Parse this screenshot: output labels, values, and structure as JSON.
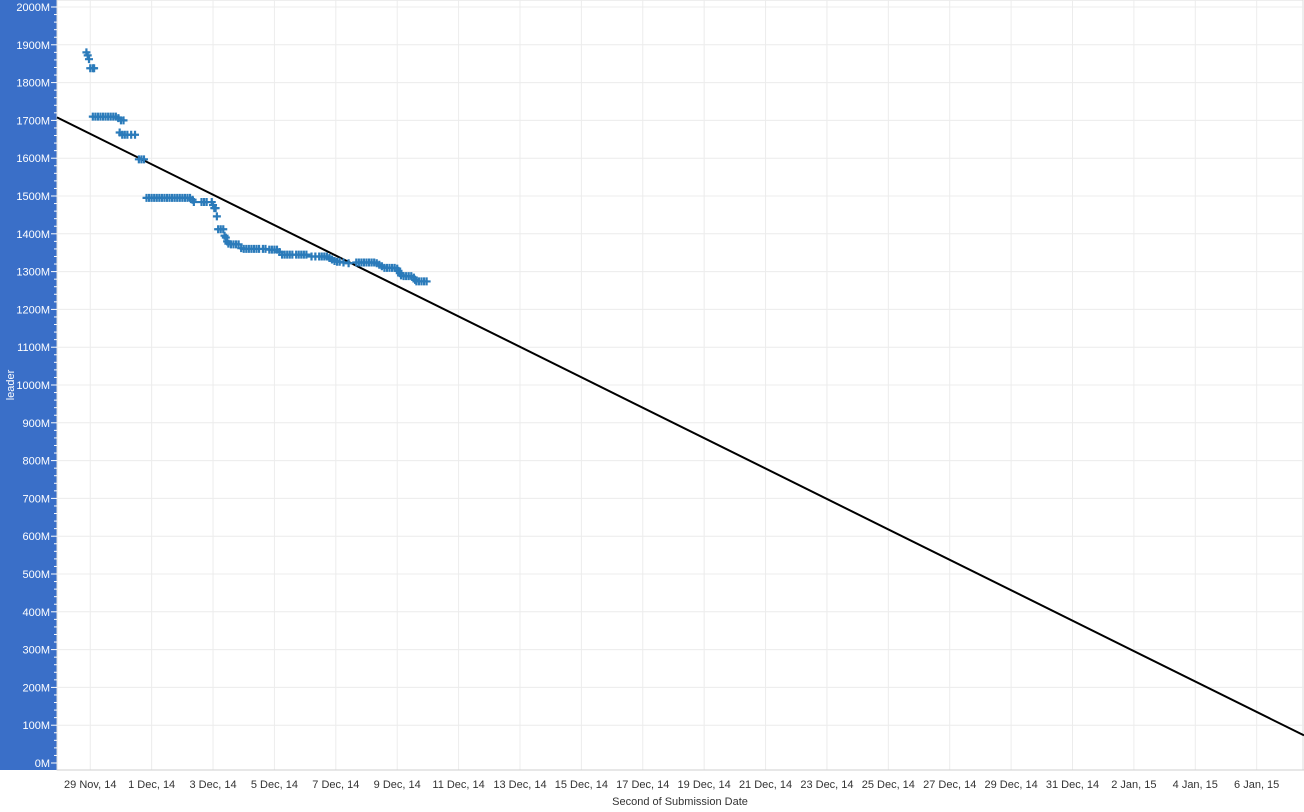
{
  "chart_data": {
    "type": "scatter",
    "title": "",
    "xlabel": "Second of Submission Date",
    "ylabel": "leader",
    "y_unit_suffix": "M",
    "ylim": [
      0,
      2000
    ],
    "y_ticks": [
      0,
      100,
      200,
      300,
      400,
      500,
      600,
      700,
      800,
      900,
      1000,
      1100,
      1200,
      1300,
      1400,
      1500,
      1600,
      1700,
      1800,
      1900,
      2000
    ],
    "y_tick_labels": [
      "0M",
      "100M",
      "200M",
      "300M",
      "400M",
      "500M",
      "600M",
      "700M",
      "800M",
      "900M",
      "1000M",
      "1100M",
      "1200M",
      "1300M",
      "1400M",
      "1500M",
      "1600M",
      "1700M",
      "1800M",
      "1900M",
      "2000M"
    ],
    "xlim": [
      "2014-11-27T22:00",
      "2015-01-07T13:00"
    ],
    "x_ticks": [
      "2014-11-29",
      "2014-12-01",
      "2014-12-03",
      "2014-12-05",
      "2014-12-07",
      "2014-12-09",
      "2014-12-11",
      "2014-12-13",
      "2014-12-15",
      "2014-12-17",
      "2014-12-19",
      "2014-12-21",
      "2014-12-23",
      "2014-12-25",
      "2014-12-27",
      "2014-12-29",
      "2014-12-31",
      "2015-01-02",
      "2015-01-04",
      "2015-01-06"
    ],
    "x_tick_labels": [
      "29 Nov, 14",
      "1 Dec, 14",
      "3 Dec, 14",
      "5 Dec, 14",
      "7 Dec, 14",
      "9 Dec, 14",
      "11 Dec, 14",
      "13 Dec, 14",
      "15 Dec, 14",
      "17 Dec, 14",
      "19 Dec, 14",
      "21 Dec, 14",
      "23 Dec, 14",
      "25 Dec, 14",
      "27 Dec, 14",
      "29 Dec, 14",
      "31 Dec, 14",
      "2 Jan, 15",
      "4 Jan, 15",
      "6 Jan, 15"
    ],
    "grid": true,
    "marker": "plus",
    "marker_color": "#2b7bba",
    "trend_line": {
      "start": {
        "x": "2014-11-27T22:00",
        "y": 1708
      },
      "end": {
        "x": "2015-01-07T13:00",
        "y": 73
      },
      "color": "#000000"
    },
    "series": [
      {
        "points": [
          {
            "x": "2014-11-28T21:00",
            "y": 1880
          },
          {
            "x": "2014-11-28T22:00",
            "y": 1872
          },
          {
            "x": "2014-11-28T23:00",
            "y": 1862
          },
          {
            "x": "2014-11-29T00:00",
            "y": 1838
          },
          {
            "x": "2014-11-29T02:00",
            "y": 1838
          },
          {
            "x": "2014-11-29T03:00",
            "y": 1838
          },
          {
            "x": "2014-11-29T02:00",
            "y": 1710
          },
          {
            "x": "2014-11-29T04:00",
            "y": 1710
          },
          {
            "x": "2014-11-29T06:00",
            "y": 1710
          },
          {
            "x": "2014-11-29T08:00",
            "y": 1710
          },
          {
            "x": "2014-11-29T10:00",
            "y": 1710
          },
          {
            "x": "2014-11-29T12:00",
            "y": 1710
          },
          {
            "x": "2014-11-29T14:00",
            "y": 1710
          },
          {
            "x": "2014-11-29T16:00",
            "y": 1710
          },
          {
            "x": "2014-11-29T18:00",
            "y": 1710
          },
          {
            "x": "2014-11-29T20:00",
            "y": 1710
          },
          {
            "x": "2014-11-29T22:00",
            "y": 1706
          },
          {
            "x": "2014-11-30T00:00",
            "y": 1700
          },
          {
            "x": "2014-11-30T02:00",
            "y": 1700
          },
          {
            "x": "2014-11-29T23:00",
            "y": 1668
          },
          {
            "x": "2014-11-30T01:00",
            "y": 1662
          },
          {
            "x": "2014-11-30T03:00",
            "y": 1662
          },
          {
            "x": "2014-11-30T05:00",
            "y": 1662
          },
          {
            "x": "2014-11-30T08:00",
            "y": 1662
          },
          {
            "x": "2014-11-30T11:00",
            "y": 1662
          },
          {
            "x": "2014-11-30T14:00",
            "y": 1597
          },
          {
            "x": "2014-11-30T16:00",
            "y": 1597
          },
          {
            "x": "2014-11-30T18:00",
            "y": 1597
          },
          {
            "x": "2014-11-30T20:00",
            "y": 1495
          },
          {
            "x": "2014-11-30T22:00",
            "y": 1495
          },
          {
            "x": "2014-12-01T00:00",
            "y": 1495
          },
          {
            "x": "2014-12-01T02:00",
            "y": 1495
          },
          {
            "x": "2014-12-01T04:00",
            "y": 1495
          },
          {
            "x": "2014-12-01T06:00",
            "y": 1495
          },
          {
            "x": "2014-12-01T08:00",
            "y": 1495
          },
          {
            "x": "2014-12-01T10:00",
            "y": 1495
          },
          {
            "x": "2014-12-01T12:00",
            "y": 1495
          },
          {
            "x": "2014-12-01T14:00",
            "y": 1495
          },
          {
            "x": "2014-12-01T16:00",
            "y": 1495
          },
          {
            "x": "2014-12-01T18:00",
            "y": 1495
          },
          {
            "x": "2014-12-01T20:00",
            "y": 1495
          },
          {
            "x": "2014-12-01T22:00",
            "y": 1495
          },
          {
            "x": "2014-12-02T00:00",
            "y": 1495
          },
          {
            "x": "2014-12-02T02:00",
            "y": 1495
          },
          {
            "x": "2014-12-02T04:00",
            "y": 1495
          },
          {
            "x": "2014-12-02T06:00",
            "y": 1495
          },
          {
            "x": "2014-12-02T08:00",
            "y": 1490
          },
          {
            "x": "2014-12-02T09:00",
            "y": 1484
          },
          {
            "x": "2014-12-02T15:00",
            "y": 1484
          },
          {
            "x": "2014-12-02T17:00",
            "y": 1484
          },
          {
            "x": "2014-12-02T19:00",
            "y": 1484
          },
          {
            "x": "2014-12-02T23:00",
            "y": 1484
          },
          {
            "x": "2014-12-03T00:00",
            "y": 1476
          },
          {
            "x": "2014-12-03T01:00",
            "y": 1468
          },
          {
            "x": "2014-12-03T02:00",
            "y": 1468
          },
          {
            "x": "2014-12-03T03:00",
            "y": 1446
          },
          {
            "x": "2014-12-03T04:00",
            "y": 1412
          },
          {
            "x": "2014-12-03T06:00",
            "y": 1412
          },
          {
            "x": "2014-12-03T08:00",
            "y": 1412
          },
          {
            "x": "2014-12-03T09:00",
            "y": 1395
          },
          {
            "x": "2014-12-03T10:00",
            "y": 1390
          },
          {
            "x": "2014-12-03T11:00",
            "y": 1380
          },
          {
            "x": "2014-12-03T12:00",
            "y": 1374
          },
          {
            "x": "2014-12-03T14:00",
            "y": 1372
          },
          {
            "x": "2014-12-03T16:00",
            "y": 1372
          },
          {
            "x": "2014-12-03T18:00",
            "y": 1372
          },
          {
            "x": "2014-12-03T20:00",
            "y": 1372
          },
          {
            "x": "2014-12-03T22:00",
            "y": 1362
          },
          {
            "x": "2014-12-04T00:00",
            "y": 1360
          },
          {
            "x": "2014-12-04T02:00",
            "y": 1360
          },
          {
            "x": "2014-12-04T04:00",
            "y": 1360
          },
          {
            "x": "2014-12-04T06:00",
            "y": 1360
          },
          {
            "x": "2014-12-04T08:00",
            "y": 1360
          },
          {
            "x": "2014-12-04T10:00",
            "y": 1360
          },
          {
            "x": "2014-12-04T12:00",
            "y": 1360
          },
          {
            "x": "2014-12-04T15:00",
            "y": 1360
          },
          {
            "x": "2014-12-04T17:00",
            "y": 1360
          },
          {
            "x": "2014-12-04T20:00",
            "y": 1358
          },
          {
            "x": "2014-12-04T22:00",
            "y": 1358
          },
          {
            "x": "2014-12-05T00:00",
            "y": 1358
          },
          {
            "x": "2014-12-05T02:00",
            "y": 1358
          },
          {
            "x": "2014-12-05T04:00",
            "y": 1352
          },
          {
            "x": "2014-12-05T06:00",
            "y": 1345
          },
          {
            "x": "2014-12-05T08:00",
            "y": 1345
          },
          {
            "x": "2014-12-05T10:00",
            "y": 1345
          },
          {
            "x": "2014-12-05T12:00",
            "y": 1345
          },
          {
            "x": "2014-12-05T14:00",
            "y": 1345
          },
          {
            "x": "2014-12-05T17:00",
            "y": 1345
          },
          {
            "x": "2014-12-05T19:00",
            "y": 1345
          },
          {
            "x": "2014-12-05T21:00",
            "y": 1345
          },
          {
            "x": "2014-12-05T23:00",
            "y": 1345
          },
          {
            "x": "2014-12-06T01:00",
            "y": 1345
          },
          {
            "x": "2014-12-06T05:00",
            "y": 1340
          },
          {
            "x": "2014-12-06T08:00",
            "y": 1340
          },
          {
            "x": "2014-12-06T11:00",
            "y": 1340
          },
          {
            "x": "2014-12-06T13:00",
            "y": 1340
          },
          {
            "x": "2014-12-06T15:00",
            "y": 1340
          },
          {
            "x": "2014-12-06T17:00",
            "y": 1340
          },
          {
            "x": "2014-12-06T19:00",
            "y": 1336
          },
          {
            "x": "2014-12-06T21:00",
            "y": 1332
          },
          {
            "x": "2014-12-06T23:00",
            "y": 1328
          },
          {
            "x": "2014-12-07T01:00",
            "y": 1326
          },
          {
            "x": "2014-12-07T03:00",
            "y": 1326
          },
          {
            "x": "2014-12-07T06:00",
            "y": 1324
          },
          {
            "x": "2014-12-07T10:00",
            "y": 1322
          },
          {
            "x": "2014-12-07T16:00",
            "y": 1324
          },
          {
            "x": "2014-12-07T18:00",
            "y": 1324
          },
          {
            "x": "2014-12-07T20:00",
            "y": 1324
          },
          {
            "x": "2014-12-07T22:00",
            "y": 1324
          },
          {
            "x": "2014-12-08T00:00",
            "y": 1324
          },
          {
            "x": "2014-12-08T02:00",
            "y": 1324
          },
          {
            "x": "2014-12-08T04:00",
            "y": 1324
          },
          {
            "x": "2014-12-08T06:00",
            "y": 1324
          },
          {
            "x": "2014-12-08T08:00",
            "y": 1322
          },
          {
            "x": "2014-12-08T10:00",
            "y": 1318
          },
          {
            "x": "2014-12-08T12:00",
            "y": 1314
          },
          {
            "x": "2014-12-08T14:00",
            "y": 1310
          },
          {
            "x": "2014-12-08T16:00",
            "y": 1310
          },
          {
            "x": "2014-12-08T18:00",
            "y": 1310
          },
          {
            "x": "2014-12-08T20:00",
            "y": 1310
          },
          {
            "x": "2014-12-08T22:00",
            "y": 1310
          },
          {
            "x": "2014-12-09T00:00",
            "y": 1308
          },
          {
            "x": "2014-12-09T01:00",
            "y": 1302
          },
          {
            "x": "2014-12-09T02:00",
            "y": 1296
          },
          {
            "x": "2014-12-09T03:00",
            "y": 1290
          },
          {
            "x": "2014-12-09T05:00",
            "y": 1288
          },
          {
            "x": "2014-12-09T07:00",
            "y": 1288
          },
          {
            "x": "2014-12-09T09:00",
            "y": 1288
          },
          {
            "x": "2014-12-09T11:00",
            "y": 1288
          },
          {
            "x": "2014-12-09T13:00",
            "y": 1284
          },
          {
            "x": "2014-12-09T14:00",
            "y": 1278
          },
          {
            "x": "2014-12-09T15:00",
            "y": 1274
          },
          {
            "x": "2014-12-09T17:00",
            "y": 1274
          },
          {
            "x": "2014-12-09T19:00",
            "y": 1274
          },
          {
            "x": "2014-12-09T21:00",
            "y": 1274
          },
          {
            "x": "2014-12-09T23:00",
            "y": 1274
          }
        ]
      }
    ]
  }
}
